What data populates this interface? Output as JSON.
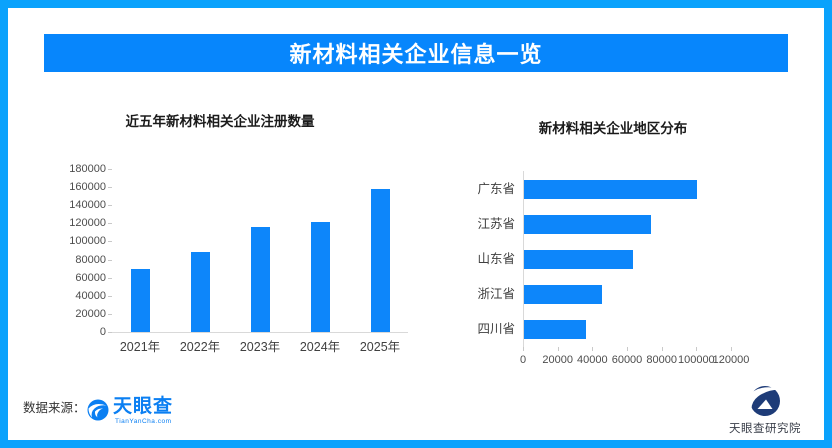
{
  "header": {
    "title": "新材料相关企业信息一览"
  },
  "colors": {
    "frame_border": "#0aa2fc",
    "banner_bg": "#0786fc",
    "banner_text": "#ffffff",
    "bar": "#0d86fa",
    "axis_line": "#d9d9d9",
    "tick_text": "#4d4d4d",
    "title_text": "#1a1a1a",
    "brand_blue": "#0b7ff2",
    "brand_navy": "#1e3c78"
  },
  "chart_data": [
    {
      "type": "bar",
      "orientation": "vertical",
      "title": "近五年新材料相关企业注册数量",
      "categories": [
        "2021年",
        "2022年",
        "2023年",
        "2024年",
        "2025年"
      ],
      "values": [
        70000,
        88000,
        116000,
        122000,
        158000
      ],
      "ylim": [
        0,
        180000
      ],
      "ytick_step": 20000,
      "grid": false,
      "legend": "none",
      "bar_color": "#0d86fa"
    },
    {
      "type": "bar",
      "orientation": "horizontal",
      "title": "新材料相关企业地区分布",
      "categories": [
        "广东省",
        "江苏省",
        "山东省",
        "浙江省",
        "四川省"
      ],
      "values": [
        100000,
        73000,
        63000,
        45000,
        36000
      ],
      "xlim": [
        0,
        120000
      ],
      "xtick_step": 20000,
      "grid": false,
      "legend": "none",
      "bar_color": "#0d86fa"
    }
  ],
  "footer": {
    "source_label": "数据来源：",
    "tianyancha_logo": {
      "name": "天眼查",
      "domain": "TianYanCha.com"
    },
    "research_institute": "天眼查研究院"
  }
}
